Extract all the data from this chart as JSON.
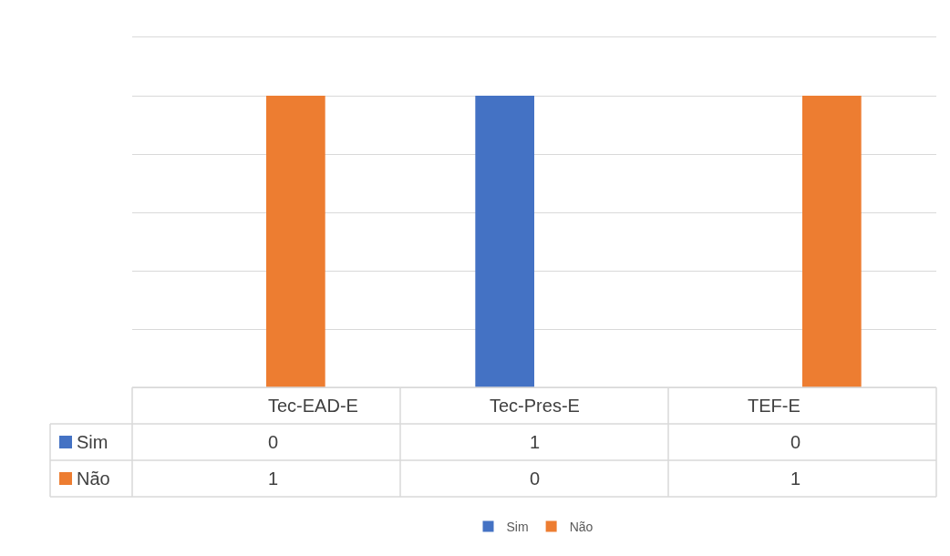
{
  "chart_data": {
    "type": "bar",
    "categories": [
      "Tec-EAD-E",
      "Tec-Pres-E",
      "TEF-E"
    ],
    "series": [
      {
        "name": "Sim",
        "color": "#4472c4",
        "values": [
          0,
          1,
          0
        ]
      },
      {
        "name": "Não",
        "color": "#ed7d31",
        "values": [
          1,
          0,
          1
        ]
      }
    ],
    "ylim": [
      0,
      1.2
    ],
    "yticks": [
      {
        "value": 0,
        "label": null
      },
      {
        "value": 0.2,
        "label": null
      },
      {
        "value": 0.4,
        "label": null
      },
      {
        "value": 0.6,
        "label": null
      },
      {
        "value": 0.8,
        "label": null
      },
      {
        "value": 1.0,
        "label": null
      }
    ],
    "grid": "y",
    "data_labels": true,
    "legend": "bottom",
    "tick_labels": "x"
  }
}
